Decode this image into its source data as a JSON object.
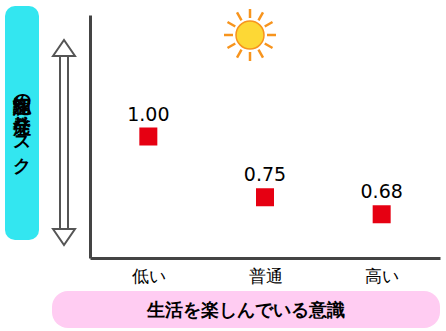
{
  "chart_data": {
    "type": "scatter",
    "categories": [
      "低い",
      "普通",
      "高い"
    ],
    "values": [
      1.0,
      0.75,
      0.68
    ],
    "value_labels": [
      "1.00",
      "0.75",
      "0.68"
    ],
    "color": "#e60012",
    "marker": "square",
    "data_labels": true,
    "tick_labels": "x",
    "ylim": [
      0.5,
      1.5
    ],
    "yticks": [],
    "xlabel": "生活を楽しんでいる意識",
    "ylabel": "認知症の発症リスク"
  }
}
